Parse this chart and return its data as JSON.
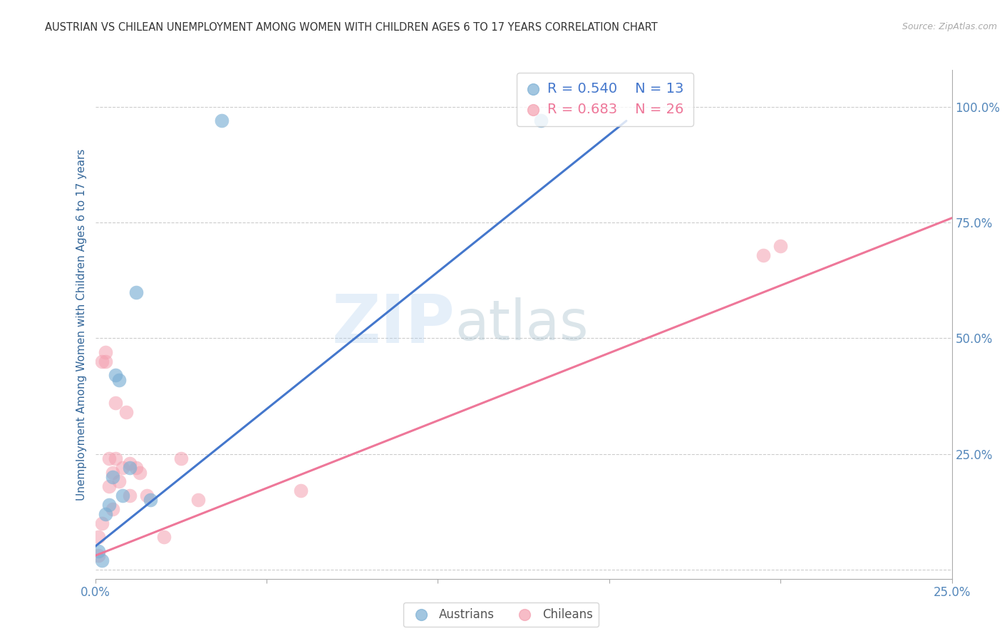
{
  "title": "AUSTRIAN VS CHILEAN UNEMPLOYMENT AMONG WOMEN WITH CHILDREN AGES 6 TO 17 YEARS CORRELATION CHART",
  "source": "Source: ZipAtlas.com",
  "ylabel": "Unemployment Among Women with Children Ages 6 to 17 years",
  "xlim": [
    0.0,
    0.25
  ],
  "ylim": [
    -0.02,
    1.08
  ],
  "right_ytick_vals": [
    0.0,
    0.25,
    0.5,
    0.75,
    1.0
  ],
  "right_yticklabels": [
    "",
    "25.0%",
    "50.0%",
    "75.0%",
    "100.0%"
  ],
  "xtick_vals": [
    0.0,
    0.05,
    0.1,
    0.15,
    0.2,
    0.25
  ],
  "xticklabels": [
    "0.0%",
    "",
    "",
    "",
    "",
    "25.0%"
  ],
  "watermark_zip": "ZIP",
  "watermark_atlas": "atlas",
  "legend_austrians_R": "R = 0.540",
  "legend_austrians_N": "N = 13",
  "legend_chileans_R": "R = 0.683",
  "legend_chileans_N": "N = 26",
  "austrians_color": "#7BAFD4",
  "chileans_color": "#F4A0B0",
  "austrians_line_color": "#4477CC",
  "chileans_line_color": "#EE7799",
  "title_color": "#333333",
  "axis_label_color": "#336699",
  "tick_color": "#5588BB",
  "background_color": "#FFFFFF",
  "grid_color": "#CCCCCC",
  "austrians_x": [
    0.001,
    0.002,
    0.003,
    0.004,
    0.005,
    0.006,
    0.007,
    0.008,
    0.01,
    0.012,
    0.016,
    0.037,
    0.13
  ],
  "austrians_y": [
    0.04,
    0.02,
    0.12,
    0.14,
    0.2,
    0.42,
    0.41,
    0.16,
    0.22,
    0.6,
    0.15,
    0.97,
    0.97
  ],
  "chileans_x": [
    0.001,
    0.001,
    0.002,
    0.002,
    0.003,
    0.003,
    0.004,
    0.004,
    0.005,
    0.005,
    0.006,
    0.006,
    0.007,
    0.008,
    0.009,
    0.01,
    0.01,
    0.012,
    0.013,
    0.015,
    0.02,
    0.025,
    0.03,
    0.06,
    0.195,
    0.2
  ],
  "chileans_y": [
    0.03,
    0.07,
    0.1,
    0.45,
    0.45,
    0.47,
    0.18,
    0.24,
    0.13,
    0.21,
    0.24,
    0.36,
    0.19,
    0.22,
    0.34,
    0.16,
    0.23,
    0.22,
    0.21,
    0.16,
    0.07,
    0.24,
    0.15,
    0.17,
    0.68,
    0.7
  ],
  "austrians_line_x": [
    0.0,
    0.155
  ],
  "austrians_line_y": [
    0.05,
    0.97
  ],
  "chileans_line_x": [
    0.0,
    0.25
  ],
  "chileans_line_y": [
    0.03,
    0.76
  ],
  "source_color": "#AAAAAA"
}
